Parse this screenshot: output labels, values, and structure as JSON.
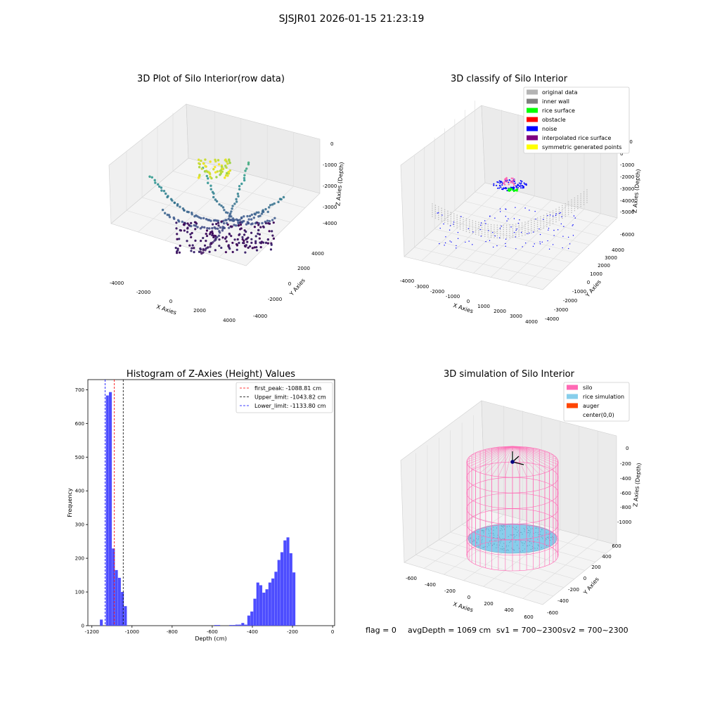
{
  "suptitle": "SJSJR01 2026-01-15 21:23:19",
  "panels": [
    {
      "title": "3D Plot of Silo Interior(row data)",
      "xlabel": "X Axies",
      "ylabel": "Y Axies",
      "zlabel": "Z Axies (Depth)",
      "x_ticks": [
        "-4000",
        "-2000",
        "0",
        "2000",
        "4000"
      ],
      "y_ticks": [
        "-4000",
        "-2000",
        "0",
        "2000",
        "4000"
      ],
      "z_ticks": [
        "0",
        "-1000",
        "-2000",
        "-3000",
        "-4000"
      ]
    },
    {
      "title": "3D classify of Silo Interior",
      "xlabel": "X Axies",
      "ylabel": "Y Axies",
      "zlabel": "Z Axies (Depth)",
      "x_ticks": [
        "-4000",
        "-3000",
        "-2000",
        "-1000",
        "0",
        "1000",
        "2000",
        "3000",
        "4000"
      ],
      "y_ticks": [
        "-4000",
        "-3000",
        "-2000",
        "-1000",
        "0",
        "1000",
        "2000",
        "3000",
        "4000"
      ],
      "z_ticks": [
        "1000",
        "0",
        "-1000",
        "-2000",
        "-3000",
        "-4000",
        "-5000",
        "-6000"
      ],
      "legend": [
        {
          "label": "original data",
          "color": "#b4b4b4"
        },
        {
          "label": "inner wall",
          "color": "#808080"
        },
        {
          "label": "rice surface",
          "color": "#00ff00"
        },
        {
          "label": "obstacle",
          "color": "#ff0000"
        },
        {
          "label": "noise",
          "color": "#0000ff"
        },
        {
          "label": "interpolated rice surface",
          "color": "#800080"
        },
        {
          "label": "symmetric generated points",
          "color": "#ffff00"
        }
      ]
    },
    {
      "title": "Histogram of Z-Axies (Height) Values",
      "xlabel": "Depth (cm)",
      "ylabel": "Frequency",
      "x_ticks": [
        "-1200",
        "-1000",
        "-800",
        "-600",
        "-400",
        "-200",
        "0"
      ],
      "y_ticks": [
        "0",
        "100",
        "200",
        "300",
        "400",
        "500",
        "600",
        "700"
      ],
      "legend": [
        {
          "label": "first_peak: -1088.81 cm",
          "color": "#ff0000"
        },
        {
          "label": "Upper_limit: -1043.82 cm",
          "color": "#000000"
        },
        {
          "label": "Lower_limit: -1133.80 cm",
          "color": "#0000ff"
        }
      ]
    },
    {
      "title": "3D simulation of Silo Interior",
      "xlabel": "X Axies",
      "ylabel": "Y Axies",
      "zlabel": "Z Axies (Depth)",
      "x_ticks": [
        "-600",
        "-400",
        "-200",
        "0",
        "200",
        "400",
        "600"
      ],
      "y_ticks": [
        "-600",
        "-400",
        "-200",
        "0",
        "200",
        "400",
        "600"
      ],
      "z_ticks": [
        "0",
        "-200",
        "-400",
        "-600",
        "-800",
        "-1000"
      ],
      "legend": [
        {
          "label": "silo",
          "color": "#ff69b4"
        },
        {
          "label": "rice simulation",
          "color": "#87ceeb"
        },
        {
          "label": "auger",
          "color": "#ff4500"
        },
        {
          "label": "center(0,0)",
          "color": "none"
        }
      ]
    }
  ],
  "info": {
    "flag": "flag = 0",
    "avg": "avgDepth = 1069 cm",
    "sv1": "sv1 = 700~2300",
    "sv2": "sv2 = 700~2300"
  },
  "chart_data": [
    {
      "type": "scatter",
      "title": "3D Plot of Silo Interior(row data)",
      "xlabel": "X Axies",
      "ylabel": "Y Axies",
      "zlabel": "Z Axies (Depth)",
      "xlim": [
        -4500,
        4500
      ],
      "ylim": [
        -4500,
        4500
      ],
      "zlim": [
        -4700,
        200
      ],
      "colormap": "viridis"
    },
    {
      "type": "scatter",
      "title": "3D classify of Silo Interior",
      "xlabel": "X Axies",
      "ylabel": "Y Axies",
      "zlabel": "Z Axies (Depth)",
      "xlim": [
        -4000,
        4000
      ],
      "ylim": [
        -4000,
        4000
      ],
      "zlim": [
        -6500,
        1000
      ],
      "series": [
        {
          "name": "original data",
          "color": "#b4b4b4"
        },
        {
          "name": "inner wall",
          "color": "#808080"
        },
        {
          "name": "rice surface",
          "color": "#00ff00"
        },
        {
          "name": "obstacle",
          "color": "#ff0000"
        },
        {
          "name": "noise",
          "color": "#0000ff"
        },
        {
          "name": "interpolated rice surface",
          "color": "#800080"
        },
        {
          "name": "symmetric generated points",
          "color": "#ffff00"
        }
      ],
      "legend_position": "top-right"
    },
    {
      "type": "bar",
      "title": "Histogram of Z-Axies (Height) Values",
      "xlabel": "Depth (cm)",
      "ylabel": "Frequency",
      "xlim": [
        -1220,
        10
      ],
      "ylim": [
        0,
        730
      ],
      "bin_width": 15,
      "bins": [
        {
          "x0": -1160,
          "count": 18
        },
        {
          "x0": -1145,
          "count": 0
        },
        {
          "x0": -1130,
          "count": 683
        },
        {
          "x0": -1115,
          "count": 693
        },
        {
          "x0": -1100,
          "count": 229
        },
        {
          "x0": -1085,
          "count": 165
        },
        {
          "x0": -1070,
          "count": 142
        },
        {
          "x0": -1055,
          "count": 100
        },
        {
          "x0": -1040,
          "count": 58
        },
        {
          "x0": -590,
          "count": 2
        },
        {
          "x0": -575,
          "count": 2
        },
        {
          "x0": -515,
          "count": 2
        },
        {
          "x0": -500,
          "count": 2
        },
        {
          "x0": -485,
          "count": 3
        },
        {
          "x0": -470,
          "count": 3
        },
        {
          "x0": -455,
          "count": 8
        },
        {
          "x0": -440,
          "count": 3
        },
        {
          "x0": -425,
          "count": 30
        },
        {
          "x0": -410,
          "count": 42
        },
        {
          "x0": -395,
          "count": 80
        },
        {
          "x0": -380,
          "count": 128
        },
        {
          "x0": -365,
          "count": 120
        },
        {
          "x0": -350,
          "count": 98
        },
        {
          "x0": -335,
          "count": 108
        },
        {
          "x0": -320,
          "count": 128
        },
        {
          "x0": -305,
          "count": 140
        },
        {
          "x0": -290,
          "count": 160
        },
        {
          "x0": -275,
          "count": 195
        },
        {
          "x0": -260,
          "count": 218
        },
        {
          "x0": -245,
          "count": 253
        },
        {
          "x0": -230,
          "count": 262
        },
        {
          "x0": -215,
          "count": 215
        },
        {
          "x0": -200,
          "count": 158
        }
      ],
      "bar_color": "#4d4dff",
      "vlines": [
        {
          "name": "first_peak: -1088.81 cm",
          "x": -1088.81,
          "color": "#ff0000"
        },
        {
          "name": "Upper_limit: -1043.82 cm",
          "x": -1043.82,
          "color": "#000000"
        },
        {
          "name": "Lower_limit: -1133.80 cm",
          "x": -1133.8,
          "color": "#0000ff"
        }
      ],
      "legend_position": "top-right"
    },
    {
      "type": "scatter",
      "title": "3D simulation of Silo Interior",
      "xlabel": "X Axies",
      "ylabel": "Y Axies",
      "zlabel": "Z Axies (Depth)",
      "xlim": [
        -650,
        650
      ],
      "ylim": [
        -650,
        650
      ],
      "zlim": [
        -1150,
        100
      ],
      "series": [
        {
          "name": "silo",
          "color": "#ff69b4"
        },
        {
          "name": "rice simulation",
          "color": "#87ceeb"
        },
        {
          "name": "auger",
          "color": "#ff4500"
        },
        {
          "name": "center(0,0)"
        }
      ],
      "legend_position": "top-right"
    }
  ]
}
